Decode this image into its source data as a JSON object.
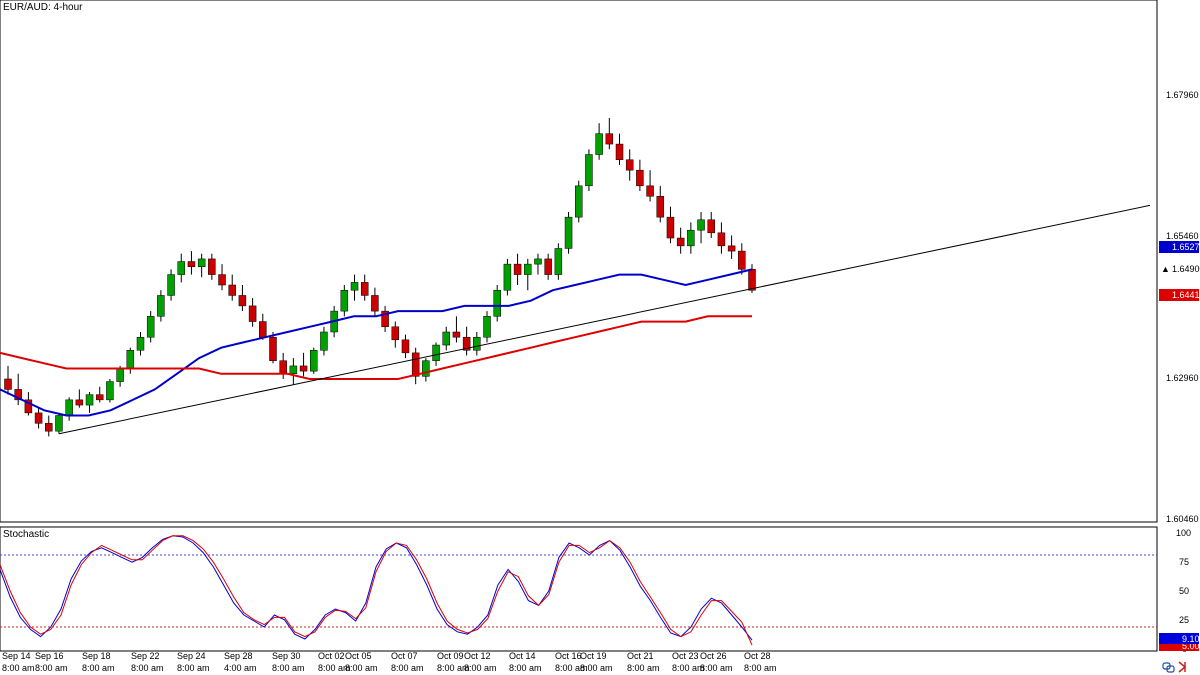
{
  "chart_data": [
    {
      "type": "candlestick",
      "title": "EUR/AUD: 4-hour",
      "ylim": [
        1.6046,
        1.7046
      ],
      "y_ticks": [
        "1.67960",
        "1.65460",
        "1.62960",
        "1.60460"
      ],
      "x_tick_labels": [
        {
          "date": "Sep 14",
          "time": "8:00 am"
        },
        {
          "date": "Sep 16",
          "time": "8:00 am"
        },
        {
          "date": "Sep 18",
          "time": "8:00 am"
        },
        {
          "date": "Sep 22",
          "time": "8:00 am"
        },
        {
          "date": "Sep 24",
          "time": "8:00 am"
        },
        {
          "date": "Sep 28",
          "time": "4:00 am"
        },
        {
          "date": "Sep 30",
          "time": "8:00 am"
        },
        {
          "date": "Oct 02",
          "time": "8:00 am"
        },
        {
          "date": "Oct 05",
          "time": "8:00 am"
        },
        {
          "date": "Oct 07",
          "time": "8:00 am"
        },
        {
          "date": "Oct 09",
          "time": "8:00 am"
        },
        {
          "date": "Oct 12",
          "time": "8:00 am"
        },
        {
          "date": "Oct 14",
          "time": "8:00 am"
        },
        {
          "date": "Oct 16",
          "time": "8:00 am"
        },
        {
          "date": "Oct 19",
          "time": "8:00 am"
        },
        {
          "date": "Oct 21",
          "time": "8:00 am"
        },
        {
          "date": "Oct 23",
          "time": "8:00 am"
        },
        {
          "date": "Oct 26",
          "time": "8:00 am"
        },
        {
          "date": "Oct 28",
          "time": "8:00 am"
        }
      ],
      "series": [
        {
          "kind": "moving-average",
          "color": "#0000cc",
          "last_value": "1.65277",
          "values": [
            1.63,
            1.628,
            1.626,
            1.625,
            1.625,
            1.626,
            1.628,
            1.63,
            1.633,
            1.636,
            1.638,
            1.639,
            1.64,
            1.641,
            1.642,
            1.643,
            1.644,
            1.644,
            1.645,
            1.645,
            1.645,
            1.646,
            1.646,
            1.646,
            1.647,
            1.649,
            1.65,
            1.651,
            1.652,
            1.652,
            1.651,
            1.65,
            1.651,
            1.652,
            1.653
          ]
        },
        {
          "kind": "moving-average",
          "color": "#dd0000",
          "last_value": "1.64415",
          "values": [
            1.637,
            1.636,
            1.635,
            1.634,
            1.634,
            1.634,
            1.634,
            1.634,
            1.634,
            1.634,
            1.633,
            1.633,
            1.633,
            1.633,
            1.632,
            1.632,
            1.632,
            1.632,
            1.632,
            1.633,
            1.634,
            1.635,
            1.636,
            1.637,
            1.638,
            1.639,
            1.64,
            1.641,
            1.642,
            1.643,
            1.643,
            1.643,
            1.644,
            1.644,
            1.644
          ]
        }
      ],
      "current_price": "1.64900",
      "trendline": {
        "from": [
          "Sep 16",
          1.6215
        ],
        "to": [
          "Oct 28",
          1.6493
        ]
      },
      "candles": [
        [
          1.632,
          1.6345,
          1.629,
          1.63
        ],
        [
          1.63,
          1.633,
          1.627,
          1.628
        ],
        [
          1.628,
          1.6295,
          1.625,
          1.6255
        ],
        [
          1.6255,
          1.6265,
          1.6225,
          1.6235
        ],
        [
          1.6235,
          1.625,
          1.621,
          1.622
        ],
        [
          1.622,
          1.6255,
          1.6215,
          1.625
        ],
        [
          1.625,
          1.6285,
          1.624,
          1.628
        ],
        [
          1.628,
          1.63,
          1.6265,
          1.627
        ],
        [
          1.627,
          1.6295,
          1.6255,
          1.629
        ],
        [
          1.629,
          1.6305,
          1.6275,
          1.628
        ],
        [
          1.628,
          1.632,
          1.6275,
          1.6315
        ],
        [
          1.6315,
          1.6345,
          1.6305,
          1.634
        ],
        [
          1.634,
          1.638,
          1.633,
          1.6375
        ],
        [
          1.6375,
          1.641,
          1.6365,
          1.64
        ],
        [
          1.64,
          1.645,
          1.639,
          1.644
        ],
        [
          1.644,
          1.649,
          1.643,
          1.648
        ],
        [
          1.648,
          1.653,
          1.647,
          1.652
        ],
        [
          1.652,
          1.656,
          1.6505,
          1.6545
        ],
        [
          1.6545,
          1.6565,
          1.652,
          1.6535
        ],
        [
          1.6535,
          1.656,
          1.6515,
          1.655
        ],
        [
          1.655,
          1.656,
          1.651,
          1.652
        ],
        [
          1.652,
          1.654,
          1.649,
          1.65
        ],
        [
          1.65,
          1.652,
          1.647,
          1.648
        ],
        [
          1.648,
          1.65,
          1.645,
          1.646
        ],
        [
          1.646,
          1.6475,
          1.642,
          1.643
        ],
        [
          1.643,
          1.6445,
          1.6395,
          1.64
        ],
        [
          1.64,
          1.641,
          1.635,
          1.6355
        ],
        [
          1.6355,
          1.637,
          1.632,
          1.633
        ],
        [
          1.633,
          1.636,
          1.631,
          1.6345
        ],
        [
          1.6345,
          1.637,
          1.6325,
          1.6335
        ],
        [
          1.6335,
          1.638,
          1.633,
          1.6375
        ],
        [
          1.6375,
          1.642,
          1.6365,
          1.641
        ],
        [
          1.641,
          1.646,
          1.64,
          1.645
        ],
        [
          1.645,
          1.65,
          1.644,
          1.649
        ],
        [
          1.649,
          1.652,
          1.647,
          1.6505
        ],
        [
          1.6505,
          1.652,
          1.647,
          1.648
        ],
        [
          1.648,
          1.6495,
          1.644,
          1.645
        ],
        [
          1.645,
          1.646,
          1.641,
          1.642
        ],
        [
          1.642,
          1.643,
          1.638,
          1.6395
        ],
        [
          1.6395,
          1.6405,
          1.636,
          1.637
        ],
        [
          1.637,
          1.638,
          1.631,
          1.6325
        ],
        [
          1.6325,
          1.636,
          1.6315,
          1.6355
        ],
        [
          1.6355,
          1.639,
          1.6345,
          1.6385
        ],
        [
          1.6385,
          1.642,
          1.6375,
          1.641
        ],
        [
          1.641,
          1.644,
          1.639,
          1.64
        ],
        [
          1.64,
          1.642,
          1.6365,
          1.6375
        ],
        [
          1.6375,
          1.641,
          1.6365,
          1.64
        ],
        [
          1.64,
          1.645,
          1.639,
          1.644
        ],
        [
          1.644,
          1.65,
          1.643,
          1.649
        ],
        [
          1.649,
          1.655,
          1.648,
          1.654
        ],
        [
          1.654,
          1.656,
          1.65,
          1.652
        ],
        [
          1.652,
          1.655,
          1.649,
          1.654
        ],
        [
          1.654,
          1.656,
          1.652,
          1.655
        ],
        [
          1.655,
          1.656,
          1.651,
          1.652
        ],
        [
          1.652,
          1.658,
          1.651,
          1.657
        ],
        [
          1.657,
          1.664,
          1.656,
          1.663
        ],
        [
          1.663,
          1.67,
          1.662,
          1.669
        ],
        [
          1.669,
          1.676,
          1.668,
          1.675
        ],
        [
          1.675,
          1.681,
          1.674,
          1.679
        ],
        [
          1.679,
          1.682,
          1.676,
          1.677
        ],
        [
          1.677,
          1.679,
          1.673,
          1.674
        ],
        [
          1.674,
          1.676,
          1.67,
          1.672
        ],
        [
          1.672,
          1.674,
          1.668,
          1.669
        ],
        [
          1.669,
          1.672,
          1.666,
          1.667
        ],
        [
          1.667,
          1.669,
          1.662,
          1.663
        ],
        [
          1.663,
          1.665,
          1.658,
          1.659
        ],
        [
          1.659,
          1.661,
          1.656,
          1.6575
        ],
        [
          1.6575,
          1.662,
          1.656,
          1.6605
        ],
        [
          1.6605,
          1.664,
          1.658,
          1.6625
        ],
        [
          1.6625,
          1.664,
          1.659,
          1.66
        ],
        [
          1.66,
          1.662,
          1.656,
          1.6575
        ],
        [
          1.6575,
          1.6595,
          1.655,
          1.6565
        ],
        [
          1.6565,
          1.658,
          1.652,
          1.653
        ],
        [
          1.653,
          1.654,
          1.6485,
          1.649
        ]
      ]
    },
    {
      "type": "line",
      "title": "Stochastic",
      "ylim": [
        0,
        100
      ],
      "y_ticks": [
        "100",
        "75",
        "50",
        "25",
        "0"
      ],
      "levels": [
        80,
        20
      ],
      "series": [
        {
          "color": "#0000dd",
          "last_value": "9.10",
          "values": [
            68,
            45,
            28,
            18,
            12,
            20,
            35,
            60,
            75,
            83,
            86,
            82,
            78,
            74,
            78,
            86,
            93,
            96,
            95,
            90,
            82,
            70,
            55,
            40,
            30,
            25,
            20,
            30,
            26,
            14,
            10,
            18,
            30,
            35,
            32,
            25,
            40,
            70,
            85,
            90,
            86,
            72,
            55,
            35,
            22,
            16,
            14,
            20,
            30,
            55,
            68,
            58,
            42,
            38,
            50,
            78,
            90,
            86,
            80,
            88,
            92,
            84,
            70,
            54,
            42,
            28,
            15,
            12,
            20,
            35,
            44,
            40,
            30,
            20,
            9.1
          ]
        },
        {
          "color": "#dd0000",
          "last_value": "5.00",
          "values": [
            72,
            50,
            32,
            20,
            14,
            18,
            30,
            55,
            72,
            82,
            88,
            84,
            80,
            76,
            76,
            84,
            92,
            96,
            96,
            92,
            85,
            74,
            60,
            45,
            32,
            26,
            22,
            28,
            28,
            16,
            12,
            16,
            28,
            34,
            33,
            27,
            36,
            66,
            83,
            90,
            88,
            76,
            60,
            40,
            25,
            18,
            15,
            18,
            27,
            50,
            66,
            62,
            46,
            38,
            47,
            74,
            88,
            88,
            82,
            86,
            92,
            86,
            74,
            58,
            45,
            32,
            18,
            12,
            16,
            30,
            42,
            42,
            33,
            24,
            5.0
          ]
        }
      ]
    }
  ]
}
